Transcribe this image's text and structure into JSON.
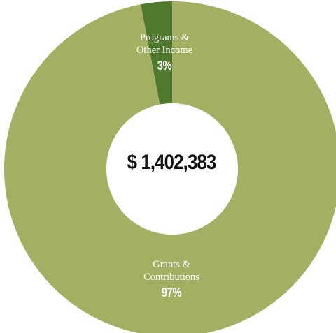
{
  "chart_data": {
    "type": "pie",
    "variant": "donut",
    "center_label": "$ 1,402,383",
    "slices": [
      {
        "name": "Programs & Other Income",
        "name_lines": [
          "Programs &",
          "Other Income"
        ],
        "percent_label": "3%",
        "value": 3,
        "color": "#4f7a2e"
      },
      {
        "name": "Grants & Contributions",
        "name_lines": [
          "Grants &",
          "Contributions"
        ],
        "percent_label": "97%",
        "value": 97,
        "color": "#a3b063"
      }
    ]
  }
}
